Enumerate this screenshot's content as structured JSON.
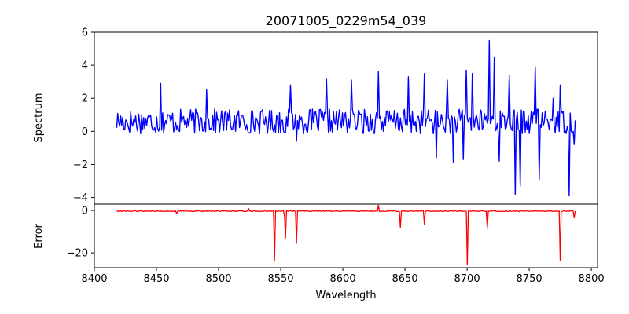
{
  "chart_data": [
    {
      "type": "line",
      "title": "20071005_0229m54_039",
      "xlabel": "",
      "ylabel": "Spectrum",
      "xlim": [
        8400,
        8805
      ],
      "ylim": [
        -4.4,
        6
      ],
      "yticks": [
        -4,
        -2,
        0,
        2,
        4,
        6
      ],
      "ytick_labels": [
        "−4",
        "−2",
        "0",
        "2",
        "4",
        "6"
      ],
      "grid": false,
      "series": [
        {
          "color": "#0000ff",
          "x_start": 8418,
          "x_end": 8787,
          "sample_count": 460,
          "baseline": 0.6,
          "noise_amplitude": 0.75,
          "spikes": [
            {
              "x": 8453,
              "y": 2.9
            },
            {
              "x": 8490,
              "y": 2.5
            },
            {
              "x": 8558,
              "y": 2.8
            },
            {
              "x": 8563,
              "y": -0.6
            },
            {
              "x": 8587,
              "y": 3.2
            },
            {
              "x": 8607,
              "y": 3.1
            },
            {
              "x": 8629,
              "y": 3.6
            },
            {
              "x": 8653,
              "y": 3.3
            },
            {
              "x": 8666,
              "y": 3.5
            },
            {
              "x": 8675,
              "y": -1.6
            },
            {
              "x": 8684,
              "y": 3.1
            },
            {
              "x": 8689,
              "y": -1.9
            },
            {
              "x": 8697,
              "y": -1.7
            },
            {
              "x": 8699,
              "y": 3.7
            },
            {
              "x": 8704,
              "y": 3.5
            },
            {
              "x": 8718,
              "y": 5.5
            },
            {
              "x": 8722,
              "y": 4.5
            },
            {
              "x": 8726,
              "y": -1.8
            },
            {
              "x": 8734,
              "y": 3.4
            },
            {
              "x": 8739,
              "y": -3.8
            },
            {
              "x": 8743,
              "y": -3.3
            },
            {
              "x": 8755,
              "y": 3.9
            },
            {
              "x": 8758,
              "y": -2.9
            },
            {
              "x": 8769,
              "y": 2.0
            },
            {
              "x": 8775,
              "y": 2.8
            },
            {
              "x": 8782,
              "y": -3.9
            },
            {
              "x": 8786,
              "y": -0.8
            }
          ]
        }
      ]
    },
    {
      "type": "line",
      "title": "",
      "xlabel": "Wavelength",
      "ylabel": "Error",
      "xlim": [
        8400,
        8805
      ],
      "ylim": [
        -27,
        3
      ],
      "xticks": [
        8400,
        8450,
        8500,
        8550,
        8600,
        8650,
        8700,
        8750,
        8800
      ],
      "xtick_labels": [
        "8400",
        "8450",
        "8500",
        "8550",
        "8600",
        "8650",
        "8700",
        "8750",
        "8800"
      ],
      "yticks": [
        -20,
        0
      ],
      "ytick_labels": [
        "−20",
        "0"
      ],
      "grid": false,
      "series": [
        {
          "color": "#ff0000",
          "x_start": 8418,
          "x_end": 8787,
          "sample_count": 460,
          "baseline": -0.3,
          "noise_amplitude": 0.4,
          "spikes": [
            {
              "x": 8466,
              "y": -1.5
            },
            {
              "x": 8524,
              "y": 1.0
            },
            {
              "x": 8545,
              "y": -23.5
            },
            {
              "x": 8553,
              "y": -3.0
            },
            {
              "x": 8554,
              "y": -13.0
            },
            {
              "x": 8563,
              "y": -15.5
            },
            {
              "x": 8629,
              "y": 2.5
            },
            {
              "x": 8646,
              "y": -8.0
            },
            {
              "x": 8666,
              "y": -6.5
            },
            {
              "x": 8700,
              "y": -25.5
            },
            {
              "x": 8716,
              "y": -8.5
            },
            {
              "x": 8775,
              "y": -23.5
            },
            {
              "x": 8786,
              "y": -3.5
            }
          ]
        }
      ]
    }
  ]
}
